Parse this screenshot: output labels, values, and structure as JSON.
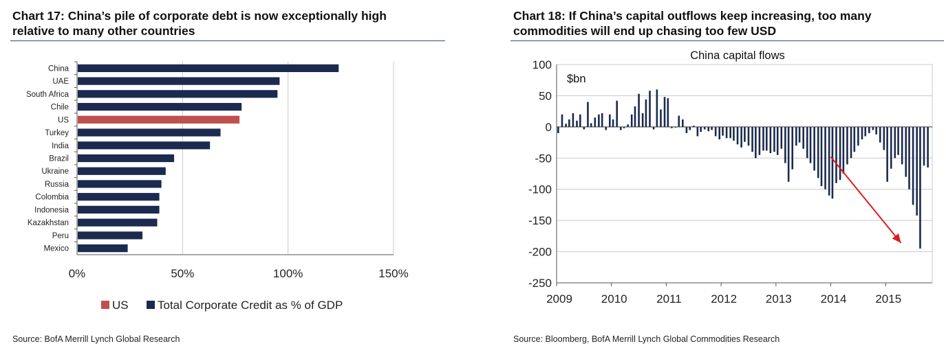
{
  "charts": [
    {
      "title_line1": "Chart 17: China’s pile of corporate debt is now exceptionally high",
      "title_line2": "relative to many other countries",
      "source": "Source: BofA Merrill Lynch Global Research"
    },
    {
      "title_line1": "Chart 18: If China’s capital outflows keep increasing, too many",
      "title_line2": "commodities will end up chasing too few USD",
      "source": "Source: Bloomberg, BofA Merrill Lynch Global Commodities Research"
    }
  ],
  "colors": {
    "navy": "#1b2a4e",
    "us_red": "#c0504d",
    "arrow_red": "#e01b1b",
    "grid": "#c8c8c8",
    "rule": "#2d4a7a"
  },
  "chart_data": [
    {
      "type": "bar",
      "orientation": "horizontal",
      "title": "Chart 17: China’s pile of corporate debt is now exceptionally high relative to many other countries",
      "categories": [
        "China",
        "UAE",
        "South Africa",
        "Chile",
        "US",
        "Turkey",
        "India",
        "Brazil",
        "Ukraine",
        "Russia",
        "Colombia",
        "Indonesia",
        "Kazakhstan",
        "Peru",
        "Mexico"
      ],
      "values": [
        124,
        96,
        95,
        78,
        77,
        68,
        63,
        46,
        42,
        40,
        39,
        39,
        38,
        31,
        24
      ],
      "highlight": "US",
      "xlim": [
        0,
        150
      ],
      "xticks": [
        "0%",
        "50%",
        "100%",
        "150%"
      ],
      "xtick_values": [
        0,
        50,
        100,
        150
      ],
      "legend": [
        {
          "name": "US",
          "color": "#c0504d"
        },
        {
          "name": "Total Corporate Credit as % of GDP",
          "color": "#1b2a4e"
        }
      ],
      "legend_position": "bottom"
    },
    {
      "type": "bar",
      "orientation": "vertical",
      "title": "China capital flows",
      "unit_label": "$bn",
      "ylim": [
        -250,
        100
      ],
      "yticks": [
        100,
        50,
        0,
        -50,
        -100,
        -150,
        -200,
        -250
      ],
      "xlim": [
        2009.0,
        2015.85
      ],
      "xticks": [
        "2009",
        "2010",
        "2011",
        "2012",
        "2013",
        "2014",
        "2015"
      ],
      "xtick_values": [
        2009,
        2010,
        2011,
        2012,
        2013,
        2014,
        2015
      ],
      "series": [
        {
          "name": "China capital flows",
          "x": [
            2009.03,
            2009.1,
            2009.17,
            2009.23,
            2009.3,
            2009.37,
            2009.43,
            2009.5,
            2009.57,
            2009.63,
            2009.7,
            2009.77,
            2009.83,
            2009.9,
            2009.97,
            2010.03,
            2010.1,
            2010.17,
            2010.23,
            2010.3,
            2010.37,
            2010.43,
            2010.5,
            2010.57,
            2010.63,
            2010.7,
            2010.77,
            2010.83,
            2010.9,
            2010.97,
            2011.03,
            2011.1,
            2011.17,
            2011.23,
            2011.3,
            2011.37,
            2011.43,
            2011.5,
            2011.57,
            2011.63,
            2011.7,
            2011.77,
            2011.83,
            2011.9,
            2011.97,
            2012.03,
            2012.1,
            2012.17,
            2012.23,
            2012.3,
            2012.37,
            2012.43,
            2012.5,
            2012.57,
            2012.63,
            2012.7,
            2012.77,
            2012.83,
            2012.9,
            2012.97,
            2013.03,
            2013.1,
            2013.17,
            2013.23,
            2013.3,
            2013.37,
            2013.43,
            2013.5,
            2013.57,
            2013.63,
            2013.7,
            2013.77,
            2013.83,
            2013.9,
            2013.97,
            2014.03,
            2014.1,
            2014.17,
            2014.23,
            2014.3,
            2014.37,
            2014.43,
            2014.5,
            2014.57,
            2014.63,
            2014.7,
            2014.77,
            2014.83,
            2014.9,
            2014.97,
            2015.03,
            2015.1,
            2015.17,
            2015.23,
            2015.3,
            2015.37,
            2015.43,
            2015.5,
            2015.57,
            2015.63,
            2015.7,
            2015.77
          ],
          "values": [
            -10,
            20,
            5,
            12,
            22,
            10,
            20,
            -4,
            40,
            6,
            15,
            20,
            22,
            -5,
            20,
            12,
            42,
            -5,
            -2,
            4,
            20,
            33,
            53,
            22,
            44,
            58,
            -4,
            60,
            28,
            48,
            46,
            -2,
            0,
            18,
            12,
            -10,
            -5,
            2,
            -15,
            -8,
            -4,
            -7,
            -5,
            -15,
            -20,
            -14,
            -18,
            -18,
            -22,
            -28,
            -33,
            -24,
            -30,
            -40,
            -50,
            -45,
            -38,
            -38,
            -42,
            -40,
            -45,
            -35,
            -58,
            -88,
            -68,
            -30,
            -25,
            -35,
            -50,
            -58,
            -70,
            -82,
            -95,
            -100,
            -110,
            -115,
            -90,
            -85,
            -75,
            -60,
            -50,
            -40,
            -30,
            -20,
            -15,
            -10,
            -5,
            -12,
            -25,
            -37,
            -88,
            -67,
            -50,
            -45,
            -60,
            -80,
            -100,
            -125,
            -142,
            -195,
            -62,
            -65
          ],
          "color": "#1b2a4e"
        }
      ],
      "annotation": "red arrow trending down from 2014 to 2015"
    }
  ]
}
